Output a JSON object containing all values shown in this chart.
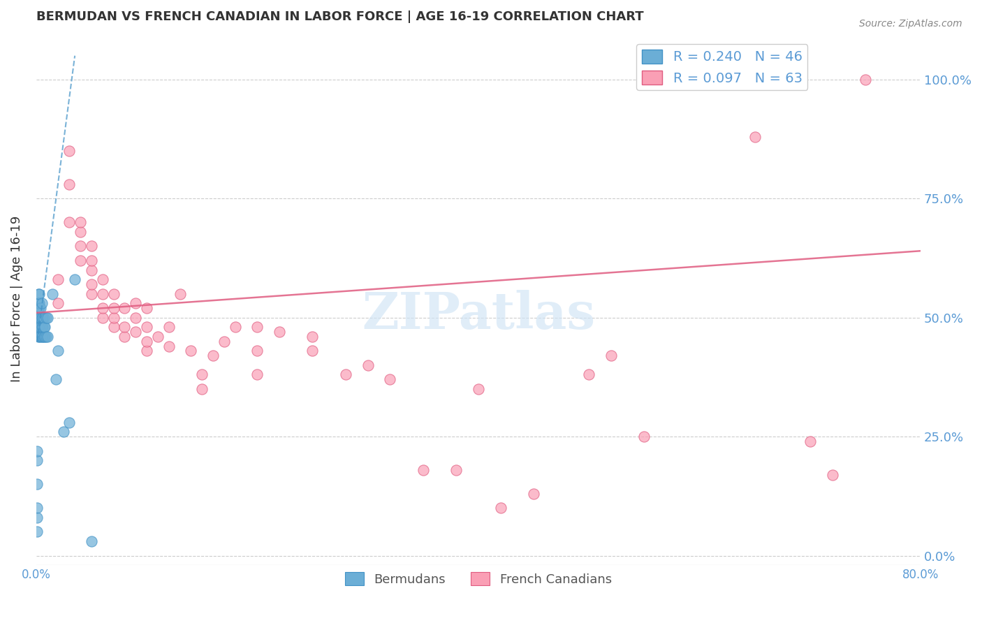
{
  "title": "BERMUDAN VS FRENCH CANADIAN IN LABOR FORCE | AGE 16-19 CORRELATION CHART",
  "source": "Source: ZipAtlas.com",
  "xlabel": "",
  "ylabel": "In Labor Force | Age 16-19",
  "xlim": [
    0.0,
    0.8
  ],
  "ylim": [
    -0.02,
    1.1
  ],
  "ytick_labels": [
    "0.0%",
    "25.0%",
    "50.0%",
    "75.0%",
    "100.0%"
  ],
  "ytick_values": [
    0.0,
    0.25,
    0.5,
    0.75,
    1.0
  ],
  "xtick_labels": [
    "0.0%",
    "",
    "",
    "",
    "",
    "",
    "",
    "",
    "80.0%"
  ],
  "xtick_values": [
    0.0,
    0.1,
    0.2,
    0.3,
    0.4,
    0.5,
    0.6,
    0.7,
    0.8
  ],
  "watermark": "ZIPatlas",
  "legend_R_blue": "R = 0.240",
  "legend_N_blue": "N = 46",
  "legend_R_pink": "R = 0.097",
  "legend_N_pink": "N = 63",
  "blue_color": "#6baed6",
  "pink_color": "#fa9fb5",
  "blue_line_color": "#4292c6",
  "pink_line_color": "#e05c80",
  "title_color": "#333333",
  "axis_label_color": "#5b9bd5",
  "grid_color": "#cccccc",
  "background_color": "#ffffff",
  "bermudans_x": [
    0.001,
    0.001,
    0.001,
    0.001,
    0.001,
    0.001,
    0.002,
    0.002,
    0.002,
    0.002,
    0.002,
    0.002,
    0.002,
    0.003,
    0.003,
    0.003,
    0.003,
    0.003,
    0.003,
    0.004,
    0.004,
    0.004,
    0.004,
    0.005,
    0.005,
    0.005,
    0.005,
    0.006,
    0.006,
    0.006,
    0.007,
    0.007,
    0.007,
    0.008,
    0.008,
    0.009,
    0.009,
    0.01,
    0.01,
    0.015,
    0.018,
    0.02,
    0.025,
    0.03,
    0.035,
    0.05
  ],
  "bermudans_y": [
    0.05,
    0.08,
    0.1,
    0.15,
    0.2,
    0.22,
    0.46,
    0.48,
    0.5,
    0.5,
    0.52,
    0.53,
    0.55,
    0.46,
    0.48,
    0.5,
    0.52,
    0.53,
    0.55,
    0.46,
    0.48,
    0.5,
    0.52,
    0.46,
    0.48,
    0.5,
    0.53,
    0.46,
    0.48,
    0.5,
    0.46,
    0.48,
    0.5,
    0.46,
    0.48,
    0.46,
    0.5,
    0.46,
    0.5,
    0.55,
    0.37,
    0.43,
    0.26,
    0.28,
    0.58,
    0.03
  ],
  "french_x": [
    0.02,
    0.02,
    0.03,
    0.03,
    0.03,
    0.04,
    0.04,
    0.04,
    0.04,
    0.05,
    0.05,
    0.05,
    0.05,
    0.05,
    0.06,
    0.06,
    0.06,
    0.06,
    0.07,
    0.07,
    0.07,
    0.07,
    0.08,
    0.08,
    0.08,
    0.09,
    0.09,
    0.09,
    0.1,
    0.1,
    0.1,
    0.1,
    0.11,
    0.12,
    0.12,
    0.13,
    0.14,
    0.15,
    0.15,
    0.16,
    0.17,
    0.18,
    0.2,
    0.2,
    0.2,
    0.22,
    0.25,
    0.25,
    0.28,
    0.3,
    0.32,
    0.35,
    0.38,
    0.4,
    0.42,
    0.45,
    0.5,
    0.52,
    0.55,
    0.65,
    0.7,
    0.72,
    0.75
  ],
  "french_y": [
    0.53,
    0.58,
    0.7,
    0.78,
    0.85,
    0.62,
    0.65,
    0.68,
    0.7,
    0.55,
    0.57,
    0.6,
    0.62,
    0.65,
    0.5,
    0.52,
    0.55,
    0.58,
    0.48,
    0.5,
    0.52,
    0.55,
    0.46,
    0.48,
    0.52,
    0.47,
    0.5,
    0.53,
    0.43,
    0.45,
    0.48,
    0.52,
    0.46,
    0.44,
    0.48,
    0.55,
    0.43,
    0.35,
    0.38,
    0.42,
    0.45,
    0.48,
    0.38,
    0.43,
    0.48,
    0.47,
    0.43,
    0.46,
    0.38,
    0.4,
    0.37,
    0.18,
    0.18,
    0.35,
    0.1,
    0.13,
    0.38,
    0.42,
    0.25,
    0.88,
    0.24,
    0.17,
    1.0
  ],
  "blue_trendline_x": [
    0.001,
    0.035
  ],
  "blue_trendline_y": [
    0.45,
    1.05
  ],
  "pink_trendline_x": [
    0.0,
    0.8
  ],
  "pink_trendline_y": [
    0.51,
    0.64
  ]
}
